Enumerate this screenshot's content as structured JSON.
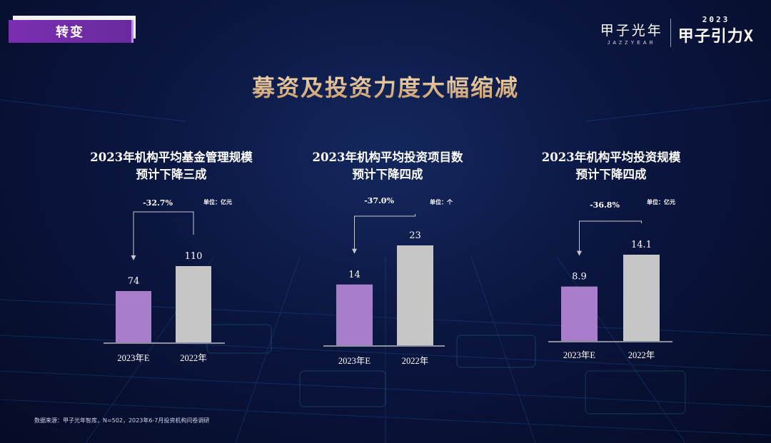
{
  "header": {
    "tag_label": "转变",
    "brand_cn": "甲子光年",
    "brand_en": "JAZZYEAR",
    "event_year": "2023",
    "event_name": "甲子引力X"
  },
  "title": "募资及投资力度大幅缩减",
  "chart_data": [
    {
      "type": "bar",
      "title_line1": "2023年机构平均基金管理规模",
      "title_line2": "预计下降三成",
      "unit": "单位：亿元",
      "change": "-32.7%",
      "categories": [
        "2023年E",
        "2022年"
      ],
      "values": [
        74,
        110
      ],
      "value_labels": [
        "74",
        "110"
      ],
      "colors": [
        "#a87dc9",
        "#c6c6c6"
      ]
    },
    {
      "type": "bar",
      "title_line1": "2023年机构平均投资项目数",
      "title_line2": "预计下降四成",
      "unit": "单位：个",
      "change": "-37.0%",
      "categories": [
        "2023年E",
        "2022年"
      ],
      "values": [
        14,
        23
      ],
      "value_labels": [
        "14",
        "23"
      ],
      "colors": [
        "#a87dc9",
        "#c6c6c6"
      ]
    },
    {
      "type": "bar",
      "title_line1": "2023年机构平均投资规模",
      "title_line2": "预计下降四成",
      "unit": "单位：亿元",
      "change": "-36.8%",
      "categories": [
        "2023年E",
        "2022年"
      ],
      "values": [
        8.9,
        14.1
      ],
      "value_labels": [
        "8.9",
        "14.1"
      ],
      "colors": [
        "#a87dc9",
        "#c6c6c6"
      ]
    }
  ],
  "source": "数据来源：甲子光年智库，N=502，2023年6-7月投资机构问卷调研"
}
